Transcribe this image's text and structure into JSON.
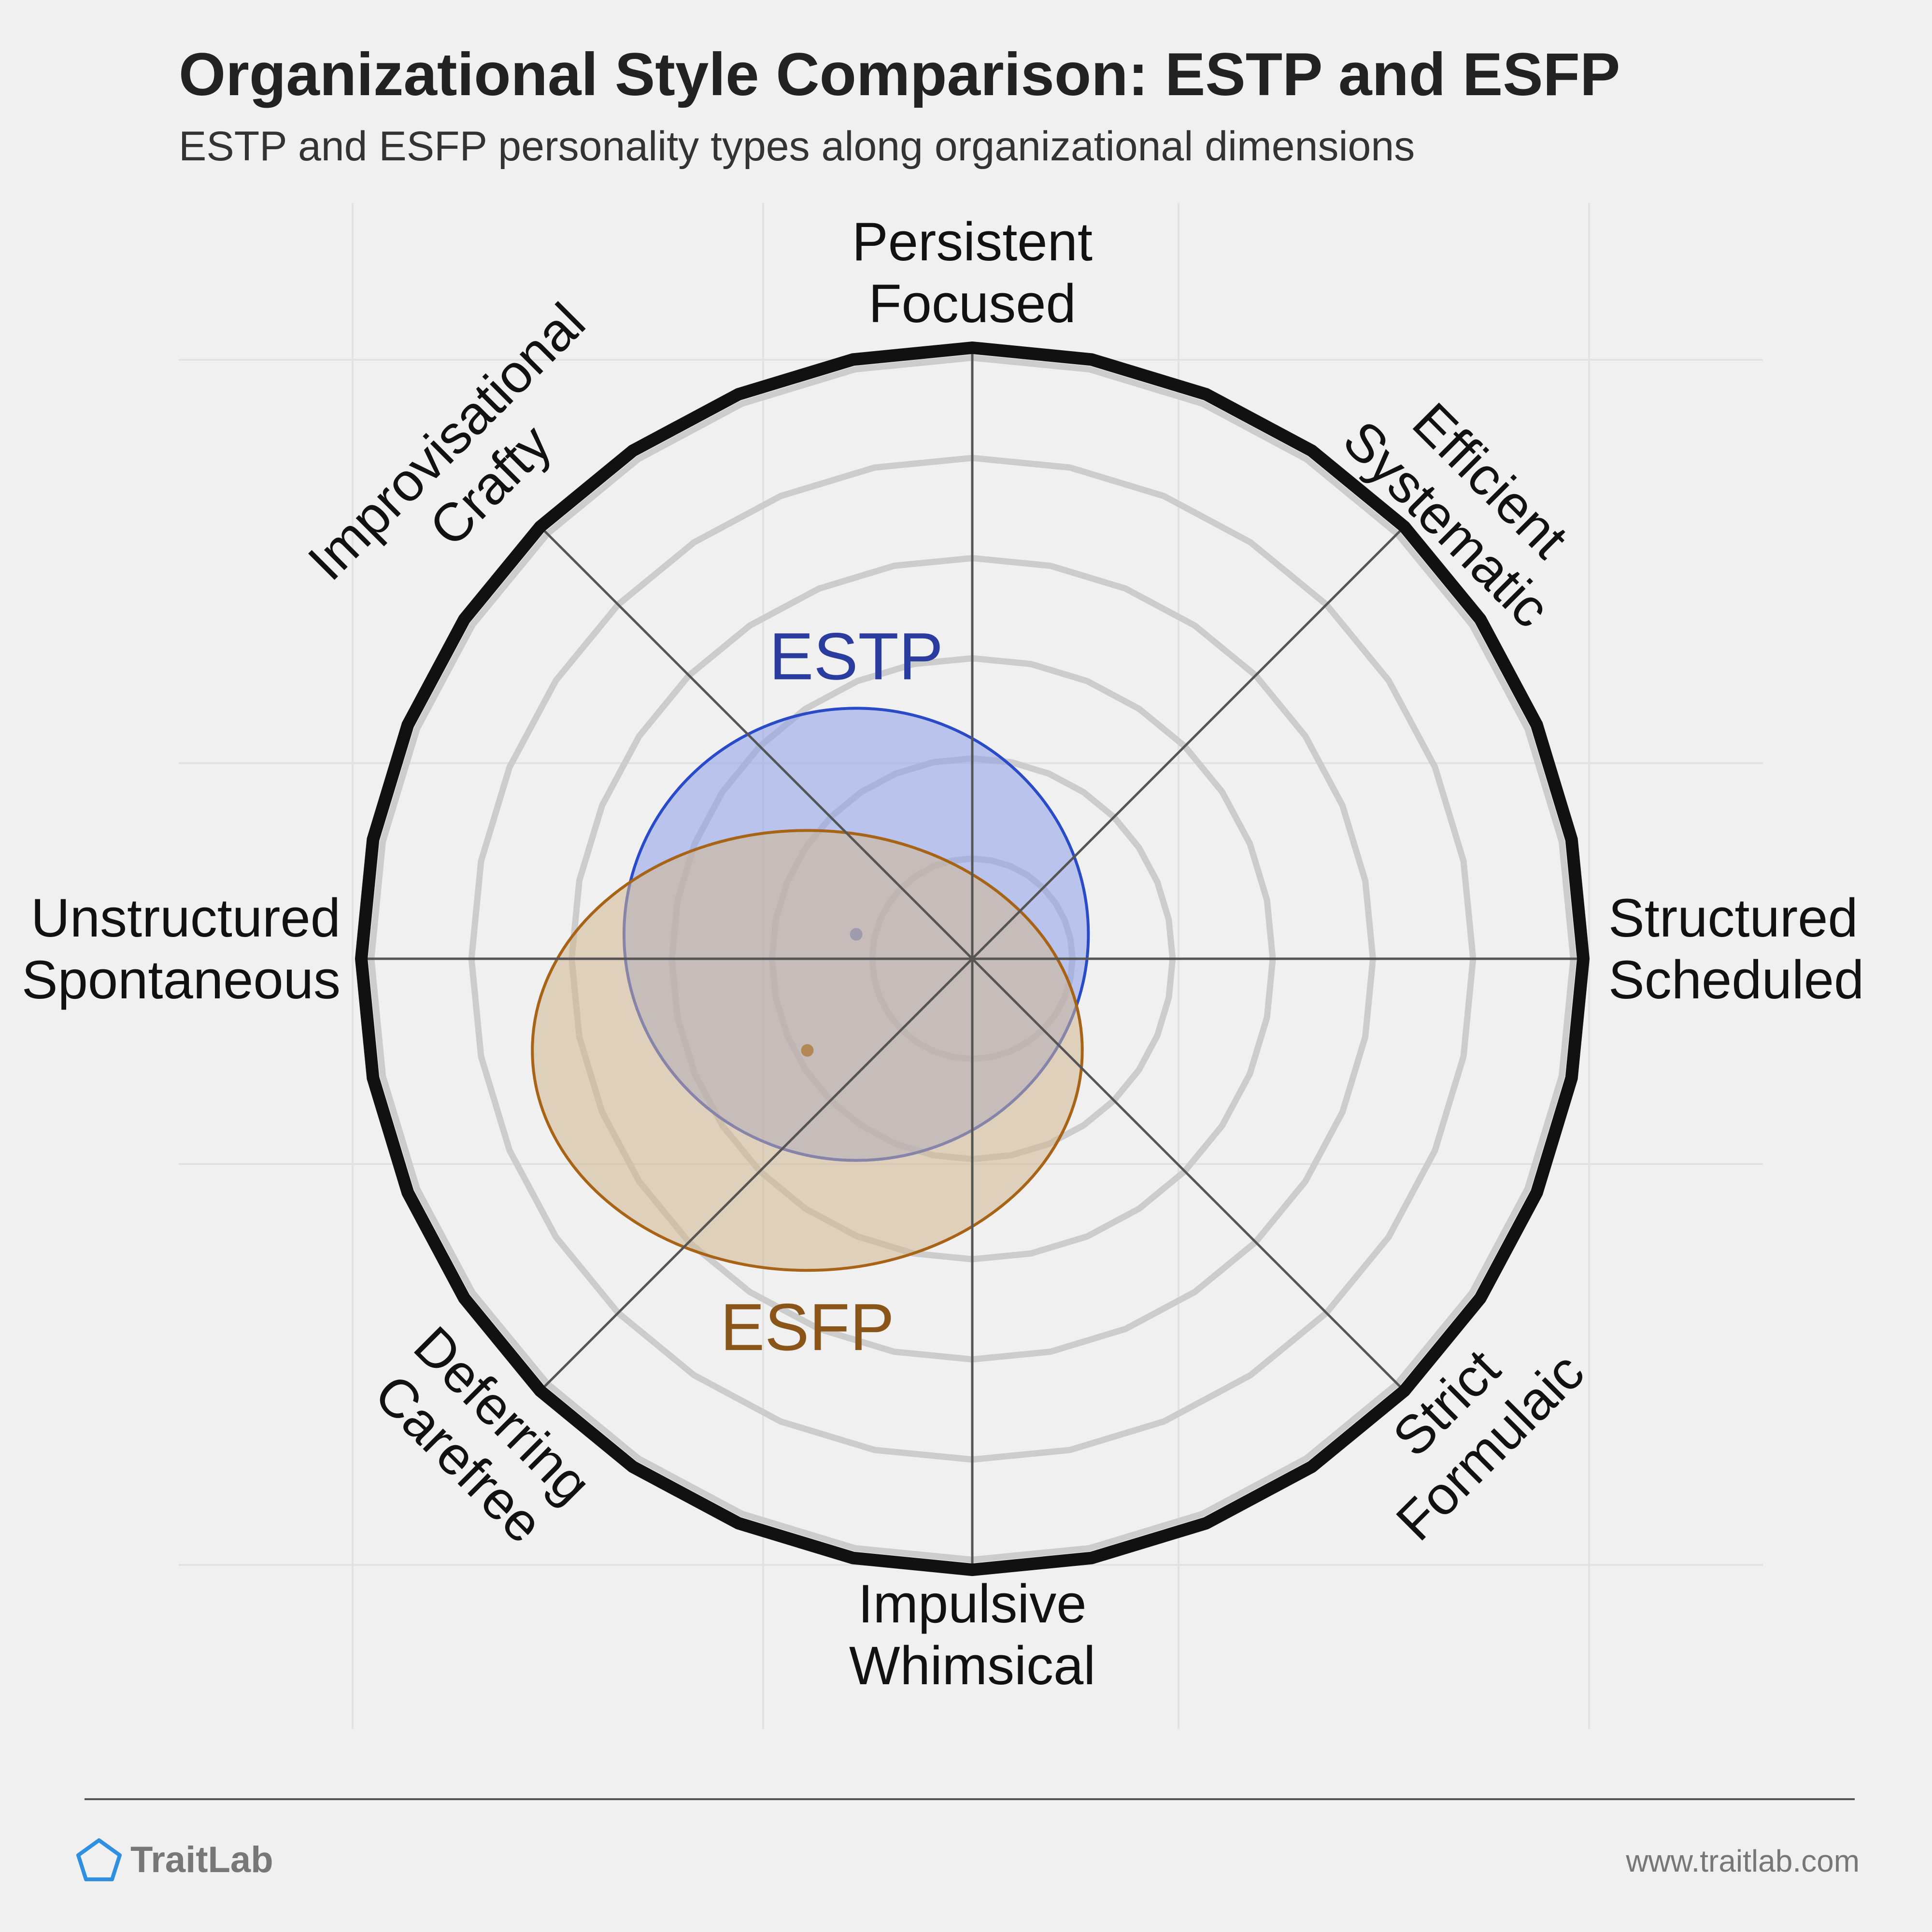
{
  "title": "Organizational Style Comparison: ESTP and ESFP",
  "subtitle": "ESTP and ESFP personality types along organizational dimensions",
  "chart_data": {
    "type": "radar",
    "axes": [
      {
        "direction": "top",
        "lines": [
          "Persistent",
          "Focused"
        ]
      },
      {
        "direction": "top-right",
        "lines": [
          "Efficient",
          "Systematic"
        ]
      },
      {
        "direction": "right",
        "lines": [
          "Structured",
          "Scheduled"
        ]
      },
      {
        "direction": "bottom-right",
        "lines": [
          "Strict",
          "Formulaic"
        ]
      },
      {
        "direction": "bottom",
        "lines": [
          "Impulsive",
          "Whimsical"
        ]
      },
      {
        "direction": "bottom-left",
        "lines": [
          "Deferring",
          "Carefree"
        ]
      },
      {
        "direction": "left",
        "lines": [
          "Unstructured",
          "Spontaneous"
        ]
      },
      {
        "direction": "top-left",
        "lines": [
          "Improvisational",
          "Crafty"
        ]
      }
    ],
    "grid_rings": 6,
    "series": [
      {
        "name": "ESTP",
        "color": "#2a4bc8",
        "fill": "#8c9fe8",
        "label_color": "#2a3d9e",
        "center": [
          -0.19,
          0.04
        ],
        "spread": [
          0.38,
          0.37
        ]
      },
      {
        "name": "ESFP",
        "color": "#a86416",
        "fill": "#d2b690",
        "label_color": "#8a5518",
        "center": [
          -0.27,
          -0.15
        ],
        "spread": [
          0.45,
          0.36
        ]
      }
    ]
  },
  "footer": {
    "brand": "TraitLab",
    "url": "www.traitlab.com"
  }
}
